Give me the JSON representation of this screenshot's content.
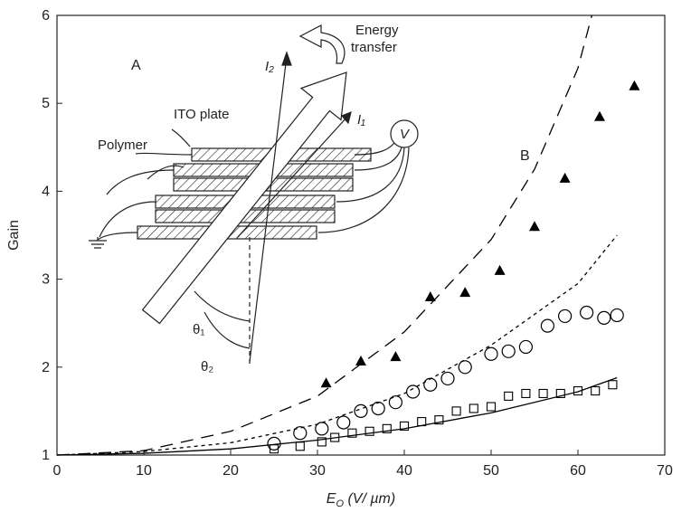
{
  "chart_data": {
    "type": "scatter",
    "ylabel": "Gain",
    "xlabel_parts": [
      "E",
      "O",
      " (V/ µm)"
    ],
    "xlim": [
      0,
      70
    ],
    "ylim": [
      1,
      6
    ],
    "xticks": [
      0,
      10,
      20,
      30,
      40,
      50,
      60,
      70
    ],
    "yticks": [
      1,
      2,
      3,
      4,
      5,
      6
    ],
    "series": [
      {
        "marker": "triangle",
        "color": "#000000",
        "x": [
          31,
          35,
          39,
          43,
          47,
          51,
          55,
          58.5,
          62.5,
          66.5
        ],
        "values": [
          1.82,
          2.07,
          2.12,
          2.8,
          2.85,
          3.1,
          3.6,
          4.15,
          4.85,
          5.2
        ]
      },
      {
        "marker": "circle",
        "color": "#000000",
        "x": [
          25,
          28,
          30.5,
          33,
          35,
          37,
          39,
          41,
          43,
          45,
          47,
          50,
          52,
          54,
          56.5,
          58.5,
          61,
          63,
          64.5
        ],
        "values": [
          1.13,
          1.25,
          1.3,
          1.37,
          1.5,
          1.53,
          1.6,
          1.72,
          1.8,
          1.87,
          2.0,
          2.15,
          2.18,
          2.23,
          2.47,
          2.58,
          2.62,
          2.56,
          2.59
        ]
      },
      {
        "marker": "square",
        "color": "#000000",
        "x": [
          25,
          28,
          30.5,
          32,
          34,
          36,
          38,
          40,
          42,
          44,
          46,
          48,
          50,
          52,
          54,
          56,
          58,
          60,
          62,
          64
        ],
        "values": [
          1.07,
          1.1,
          1.15,
          1.2,
          1.25,
          1.27,
          1.3,
          1.33,
          1.38,
          1.4,
          1.5,
          1.53,
          1.55,
          1.67,
          1.7,
          1.7,
          1.7,
          1.73,
          1.73,
          1.8
        ]
      },
      {
        "line": "dashed",
        "color": "#000000",
        "x": [
          0,
          10,
          20,
          30,
          40,
          50,
          55,
          60,
          61.6
        ],
        "values": [
          1,
          1.05,
          1.27,
          1.67,
          2.4,
          3.45,
          4.25,
          5.4,
          6
        ]
      },
      {
        "line": "dotted",
        "color": "#000000",
        "x": [
          0,
          10,
          20,
          30,
          40,
          50,
          60,
          64.5
        ],
        "values": [
          1,
          1.04,
          1.14,
          1.35,
          1.7,
          2.25,
          2.95,
          3.5
        ]
      },
      {
        "line": "solid",
        "color": "#000000",
        "x": [
          0,
          10,
          20,
          30,
          40,
          50,
          60,
          64.5
        ],
        "values": [
          1,
          1.02,
          1.07,
          1.17,
          1.3,
          1.48,
          1.72,
          1.88
        ]
      }
    ],
    "annotations": {
      "panel_a": "A",
      "panel_b": "B"
    },
    "inset": {
      "energy": "Energy",
      "transfer": "transfer",
      "ito": "ITO plate",
      "polymer": "Polymer",
      "voltage": "V",
      "i2": "I₂",
      "i1": "I₁",
      "theta1": "θ₁",
      "theta2": "θ₂"
    }
  }
}
